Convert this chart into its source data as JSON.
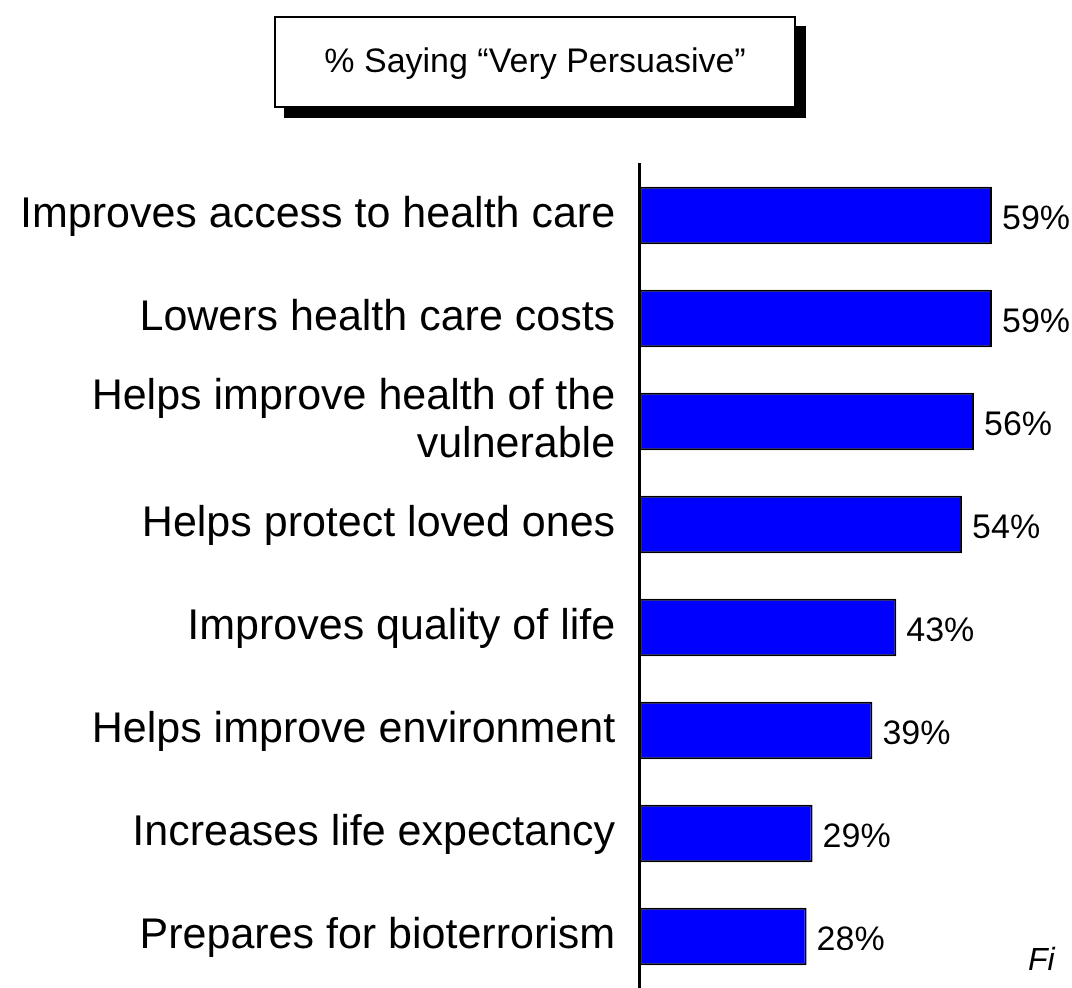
{
  "chart_data": {
    "type": "bar",
    "orientation": "horizontal",
    "title": "% Saying “Very Persuasive”",
    "categories": [
      "Improves access to health care",
      "Lowers health care costs",
      "Helps improve health of the vulnerable",
      "Helps protect loved ones",
      "Improves quality of life",
      "Helps improve environment",
      "Increases life expectancy",
      "Prepares for bioterrorism"
    ],
    "values": [
      59,
      59,
      56,
      54,
      43,
      39,
      29,
      28
    ],
    "color": "#0000ff",
    "value_labels": [
      "59%",
      "59%",
      "56%",
      "54%",
      "43%",
      "39%",
      "29%",
      "28%"
    ],
    "annotations": [
      "Fi"
    ]
  }
}
